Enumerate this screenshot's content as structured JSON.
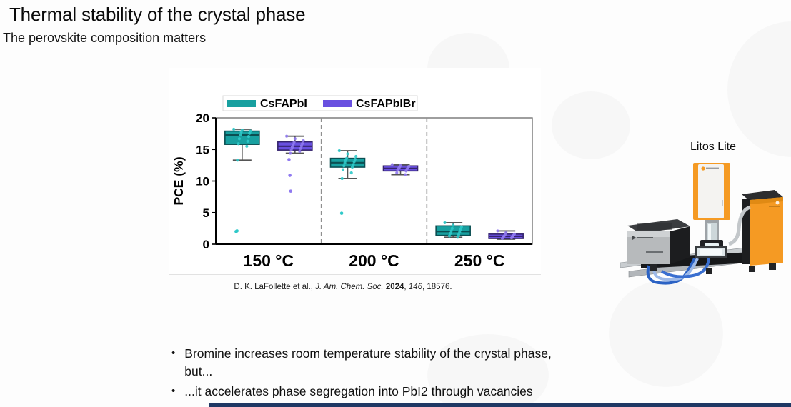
{
  "slide": {
    "title": "Thermal stability of the crystal phase",
    "subtitle": "The perovskite composition matters"
  },
  "chart_data": {
    "type": "boxplot",
    "title": "",
    "xlabel": "",
    "ylabel": "PCE (%)",
    "ylim": [
      0,
      20
    ],
    "yticks": [
      0,
      5,
      10,
      15,
      20
    ],
    "categories": [
      "150 °C",
      "200 °C",
      "250 °C"
    ],
    "grid": false,
    "legend_position": "top",
    "series": [
      {
        "name": "CsFAPbI",
        "color": "#18A0A0",
        "edge_color": "#0B4F52",
        "point_color": "#2FC9C9",
        "boxes": [
          {
            "q1": 15.8,
            "median": 17.3,
            "q3": 17.9,
            "whisker_low": 13.3,
            "whisker_high": 18.2,
            "outliers": [
              2.0,
              2.1
            ],
            "points": [
              18.2,
              18.05,
              17.9,
              17.75,
              17.55,
              17.3,
              17.05,
              16.7,
              16.3,
              15.9,
              15.5,
              13.3
            ]
          },
          {
            "q1": 12.2,
            "median": 12.9,
            "q3": 13.6,
            "whisker_low": 10.4,
            "whisker_high": 14.8,
            "outliers": [
              4.9
            ],
            "points": [
              14.8,
              14.3,
              13.9,
              13.6,
              13.45,
              13.25,
              13.05,
              12.85,
              12.6,
              12.4,
              12.2,
              11.8,
              11.3,
              10.4
            ]
          },
          {
            "q1": 1.4,
            "median": 2.0,
            "q3": 2.9,
            "whisker_low": 1.1,
            "whisker_high": 3.4,
            "outliers": [],
            "points": [
              3.4,
              3.0,
              2.75,
              2.5,
              2.3,
              2.1,
              1.9,
              1.7,
              1.5,
              1.3,
              1.1
            ]
          }
        ]
      },
      {
        "name": "CsFAPbIBr",
        "color": "#6950E0",
        "edge_color": "#35246E",
        "point_color": "#907AF0",
        "boxes": [
          {
            "q1": 14.9,
            "median": 15.5,
            "q3": 16.2,
            "whisker_low": 14.4,
            "whisker_high": 17.1,
            "outliers": [
              13.4,
              10.9,
              8.4
            ],
            "points": [
              17.1,
              16.7,
              16.4,
              16.15,
              15.95,
              15.75,
              15.55,
              15.35,
              15.15,
              14.95,
              14.7,
              14.4
            ]
          },
          {
            "q1": 11.6,
            "median": 12.0,
            "q3": 12.4,
            "whisker_low": 11.0,
            "whisker_high": 12.6,
            "outliers": [],
            "points": [
              12.6,
              12.45,
              12.3,
              12.2,
              12.1,
              12.0,
              11.9,
              11.75,
              11.6,
              11.3,
              11.0
            ]
          },
          {
            "q1": 0.9,
            "median": 1.25,
            "q3": 1.6,
            "whisker_low": 0.8,
            "whisker_high": 2.1,
            "outliers": [],
            "points": [
              2.1,
              1.8,
              1.6,
              1.5,
              1.4,
              1.3,
              1.2,
              1.1,
              1.0,
              0.9
            ]
          }
        ]
      }
    ]
  },
  "citation": {
    "parts": [
      {
        "text": "D. K. LaFollette et al., "
      },
      {
        "text": "J. Am. Chem. Soc. ",
        "italic": true
      },
      {
        "text": "2024",
        "bold": true
      },
      {
        "text": ", "
      },
      {
        "text": "146",
        "italic": true
      },
      {
        "text": ", 18576."
      }
    ]
  },
  "equipment": {
    "label": "Litos Lite"
  },
  "bullets": [
    "Bromine increases room temperature stability of the crystal phase, but...",
    "...it accelerates phase segregation into PbI2 through vacancies"
  ],
  "colors": {
    "series_teal": "#18A0A0",
    "series_purple": "#6950E0",
    "equipment_orange": "#F59A23",
    "footer_navy": "#1F3864"
  }
}
